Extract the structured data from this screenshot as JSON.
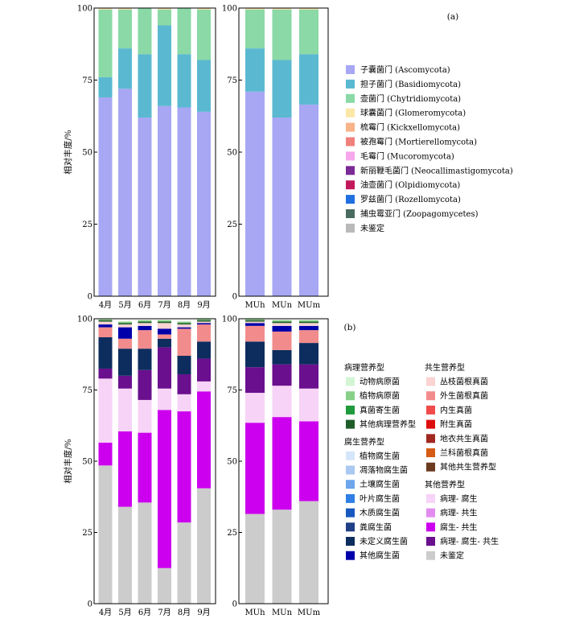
{
  "figure": {
    "panel_a_label": "(a)",
    "panel_b_label": "(b)"
  },
  "chart_data": [
    {
      "id": "a",
      "type": "bar",
      "stacked": true,
      "ylabel": "相对丰度/%",
      "ylim": [
        0,
        100
      ],
      "yticks": [
        0,
        25,
        50,
        75,
        100
      ],
      "groups": [
        {
          "categories": [
            "4月",
            "5月",
            "6月",
            "7月",
            "8月",
            "9月"
          ],
          "series": [
            {
              "name": "子囊菌门 (Ascomycota)",
              "color": "#a7a7f3",
              "values": [
                69,
                72,
                62,
                66,
                65.5,
                64
              ]
            },
            {
              "name": "担子菌门 (Basidiomycota)",
              "color": "#5ab9d0",
              "values": [
                7,
                14,
                22,
                28,
                18.5,
                18
              ]
            },
            {
              "name": "壶菌门 (Chytridiomycota)",
              "color": "#8ad9a6",
              "values": [
                23.5,
                13.5,
                16,
                5.5,
                16,
                17.5
              ]
            },
            {
              "name": "球囊菌门 (Glomeromycota)",
              "color": "#fbe7a6",
              "values": [
                0.3,
                0.3,
                0,
                0.3,
                0,
                0.3
              ]
            },
            {
              "name": "梳霉门 (Kickxellomycota)",
              "color": "#f8b388",
              "values": [
                0.1,
                0.1,
                0,
                0.1,
                0,
                0.1
              ]
            },
            {
              "name": "被孢霉门 (Mortierellomycota)",
              "color": "#f0807a",
              "values": [
                0.1,
                0.1,
                0,
                0.1,
                0,
                0.1
              ]
            }
          ]
        },
        {
          "categories": [
            "MUh",
            "MUn",
            "MUm"
          ],
          "series": [
            {
              "name": "子囊菌门 (Ascomycota)",
              "color": "#a7a7f3",
              "values": [
                71,
                62,
                66.5
              ]
            },
            {
              "name": "担子菌门 (Basidiomycota)",
              "color": "#5ab9d0",
              "values": [
                15,
                20,
                17.5
              ]
            },
            {
              "name": "壶菌门 (Chytridiomycota)",
              "color": "#8ad9a6",
              "values": [
                13.5,
                17.5,
                15.5
              ]
            },
            {
              "name": "球囊菌门 (Glomeromycota)",
              "color": "#fbe7a6",
              "values": [
                0.3,
                0.3,
                0.3
              ]
            },
            {
              "name": "梳霉门 (Kickxellomycota)",
              "color": "#f8b388",
              "values": [
                0.1,
                0.1,
                0.1
              ]
            },
            {
              "name": "被孢霉门 (Mortierellomycota)",
              "color": "#f0807a",
              "values": [
                0.1,
                0.1,
                0.1
              ]
            }
          ]
        }
      ],
      "legend": {
        "placement": "right",
        "items": [
          {
            "label": "子囊菌门 (Ascomycota)",
            "color": "#a7a7f3"
          },
          {
            "label": "担子菌门 (Basidiomycota)",
            "color": "#5ab9d0"
          },
          {
            "label": "壶菌门 (Chytridiomycota)",
            "color": "#8ad9a6"
          },
          {
            "label": "球囊菌门 (Glomeromycota)",
            "color": "#fbe7a6"
          },
          {
            "label": "梳霉门 (Kickxellomycota)",
            "color": "#f8b388"
          },
          {
            "label": "被孢霉门 (Mortierellomycota)",
            "color": "#f0807a"
          },
          {
            "label": "毛霉门 (Mucoromycota)",
            "color": "#f5a6ec"
          },
          {
            "label": "新丽鞭毛菌门 (Neocallimastigomycota)",
            "color": "#7b2a96"
          },
          {
            "label": "油壶菌门 (Olpidiomycota)",
            "color": "#c2185b"
          },
          {
            "label": "罗兹菌门 (Rozellomycota)",
            "color": "#1f6fe0"
          },
          {
            "label": "捕虫霉亚门 (Zoopagomycetes)",
            "color": "#4a6b60"
          },
          {
            "label": "未鉴定",
            "color": "#b9b9b9"
          }
        ]
      }
    },
    {
      "id": "b",
      "type": "bar",
      "stacked": true,
      "ylabel": "相对丰度/%",
      "ylim": [
        0,
        100
      ],
      "yticks": [
        0,
        25,
        50,
        75,
        100
      ],
      "groups": [
        {
          "categories": [
            "4月",
            "5月",
            "6月",
            "7月",
            "8月",
            "9月"
          ],
          "series": [
            {
              "name": "未鉴定",
              "color": "#cccccc",
              "values": [
                48.5,
                34,
                35.5,
                12.5,
                28.5,
                40.5
              ]
            },
            {
              "name": "腐生-共生",
              "color": "#cc00ee",
              "values": [
                8,
                26.5,
                24.5,
                55.5,
                39,
                34
              ]
            },
            {
              "name": "病理-腐生",
              "color": "#f7d3f7",
              "values": [
                22.5,
                15,
                11.5,
                7.5,
                6,
                3.5
              ]
            },
            {
              "name": "病理-腐生-共生",
              "color": "#6a0f8e",
              "values": [
                3.5,
                4.5,
                10.5,
                14.5,
                7,
                8
              ]
            },
            {
              "name": "未定义腐生菌",
              "color": "#0c2d5e",
              "values": [
                11,
                9.5,
                7.5,
                3,
                6.5,
                6
              ]
            },
            {
              "name": "外生菌根真菌",
              "color": "#f28c8c",
              "values": [
                3.5,
                3.5,
                6.5,
                1.5,
                9.5,
                6
              ]
            },
            {
              "name": "其他腐生菌",
              "color": "#0000aa",
              "values": [
                1,
                4,
                1.5,
                2,
                0.5,
                0.5
              ]
            },
            {
              "name": "丛枝菌根真菌",
              "color": "#fad3d3",
              "values": [
                1,
                1,
                1,
                2,
                1,
                0.5
              ]
            },
            {
              "name": "其他病理营养型",
              "color": "#1f5e2a",
              "values": [
                0.5,
                0.5,
                0.5,
                0.5,
                0.5,
                0.5
              ]
            },
            {
              "name": "植物病原菌",
              "color": "#88d088",
              "values": [
                0.3,
                0.5,
                0.5,
                0.5,
                0.5,
                0.5
              ]
            }
          ]
        },
        {
          "categories": [
            "MUh",
            "MUn",
            "MUm"
          ],
          "series": [
            {
              "name": "未鉴定",
              "color": "#cccccc",
              "values": [
                31.5,
                33,
                36
              ]
            },
            {
              "name": "腐生-共生",
              "color": "#cc00ee",
              "values": [
                32,
                32.5,
                28
              ]
            },
            {
              "name": "病理-腐生",
              "color": "#f7d3f7",
              "values": [
                10.5,
                11,
                11.5
              ]
            },
            {
              "name": "病理-腐生-共生",
              "color": "#6a0f8e",
              "values": [
                9,
                7.5,
                8.5
              ]
            },
            {
              "name": "未定义腐生菌",
              "color": "#0c2d5e",
              "values": [
                9,
                5,
                7.5
              ]
            },
            {
              "name": "外生菌根真菌",
              "color": "#f28c8c",
              "values": [
                5.5,
                6.5,
                4.5
              ]
            },
            {
              "name": "其他腐生菌",
              "color": "#0000aa",
              "values": [
                1,
                2,
                1.5
              ]
            },
            {
              "name": "丛枝菌根真菌",
              "color": "#fad3d3",
              "values": [
                0.5,
                1,
                1
              ]
            },
            {
              "name": "其他病理营养型",
              "color": "#1f5e2a",
              "values": [
                0.5,
                0.5,
                0.5
              ]
            },
            {
              "name": "植物病原菌",
              "color": "#88d088",
              "values": [
                0.5,
                0.5,
                0.5
              ]
            }
          ]
        }
      ],
      "legend": {
        "placement": "right",
        "columns": [
          [
            {
              "heading": "病理营养型"
            },
            {
              "label": "动物病原菌",
              "color": "#d4f5d4"
            },
            {
              "label": "植物病原菌",
              "color": "#88d088"
            },
            {
              "label": "真菌寄生菌",
              "color": "#1f9a3c"
            },
            {
              "label": "其他病理营养型",
              "color": "#1f5e2a"
            },
            {
              "heading": "腐生营养型"
            },
            {
              "label": "植物腐生菌",
              "color": "#d6e6fa"
            },
            {
              "label": "凋落物腐生菌",
              "color": "#a9c8f2"
            },
            {
              "label": "土壤腐生菌",
              "color": "#6ea6ec"
            },
            {
              "label": "叶片腐生菌",
              "color": "#2f7fe6"
            },
            {
              "label": "木质腐生菌",
              "color": "#1659c0"
            },
            {
              "label": "粪腐生菌",
              "color": "#1f3f86"
            },
            {
              "label": "未定义腐生菌",
              "color": "#0c2d5e"
            },
            {
              "label": "其他腐生菌",
              "color": "#0000aa"
            }
          ],
          [
            {
              "heading": "共生营养型"
            },
            {
              "label": "丛枝菌根真菌",
              "color": "#fad3d3"
            },
            {
              "label": "外生菌根真菌",
              "color": "#f28c8c"
            },
            {
              "label": "内生真菌",
              "color": "#f04a4a"
            },
            {
              "label": "附生真菌",
              "color": "#dd0d0d"
            },
            {
              "label": "地衣共生真菌",
              "color": "#a0281f"
            },
            {
              "label": "兰科菌根真菌",
              "color": "#d65b14"
            },
            {
              "label": "其他共生营养型",
              "color": "#6b3a1f"
            },
            {
              "heading": "其他营养型"
            },
            {
              "label": "病理- 腐生",
              "color": "#f7d3f7"
            },
            {
              "label": "病理- 共生",
              "color": "#e28cf0"
            },
            {
              "label": "腐生- 共生",
              "color": "#cc00ee"
            },
            {
              "label": "病理- 腐生- 共生",
              "color": "#6a0f8e"
            },
            {
              "label": "未鉴定",
              "color": "#cccccc"
            }
          ]
        ]
      }
    }
  ]
}
